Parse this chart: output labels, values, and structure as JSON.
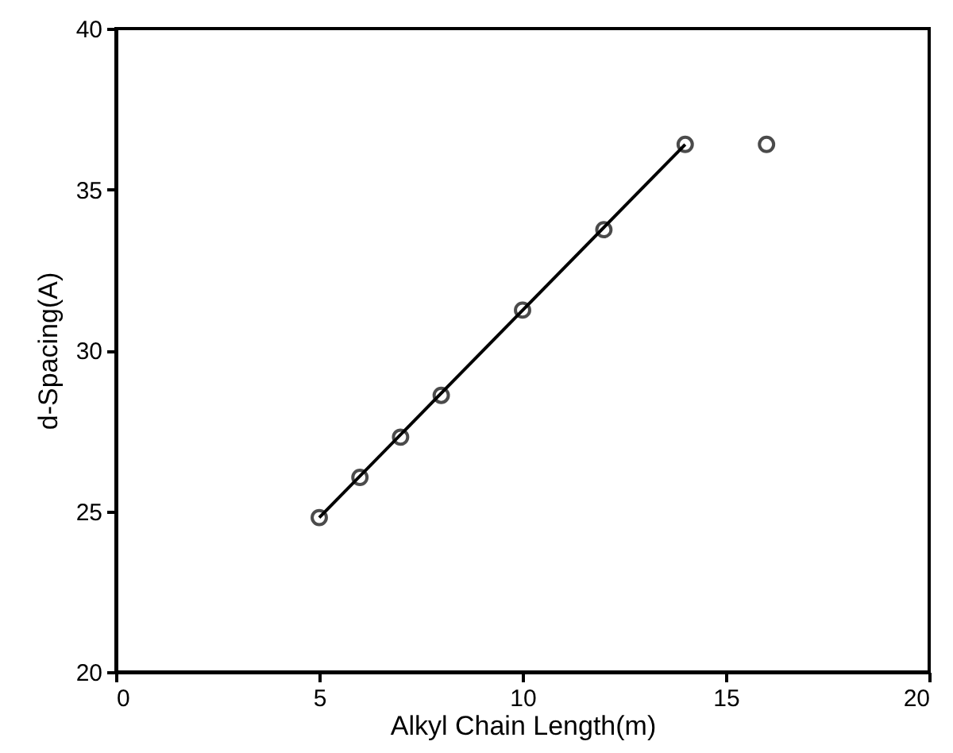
{
  "chart_data": {
    "type": "scatter",
    "xlabel": "Alkyl Chain Length(m)",
    "ylabel": "d-Spacing(A)",
    "xlim": [
      0,
      20
    ],
    "xticks": [
      0,
      5,
      10,
      15,
      20
    ],
    "ylim": [
      20,
      40
    ],
    "yticks": [
      20,
      25,
      30,
      35,
      40
    ],
    "marker": "circle",
    "series": [
      {
        "type": "scatter",
        "color": "#000000",
        "x": [
          5,
          6,
          7,
          8,
          10,
          12,
          14,
          16
        ],
        "values": [
          24.8,
          26.05,
          27.3,
          28.6,
          31.25,
          33.75,
          36.4,
          36.4
        ]
      },
      {
        "type": "line",
        "color": "#000000",
        "marker": "none",
        "x": [
          5,
          14
        ],
        "values": [
          24.8,
          36.4
        ]
      }
    ]
  }
}
